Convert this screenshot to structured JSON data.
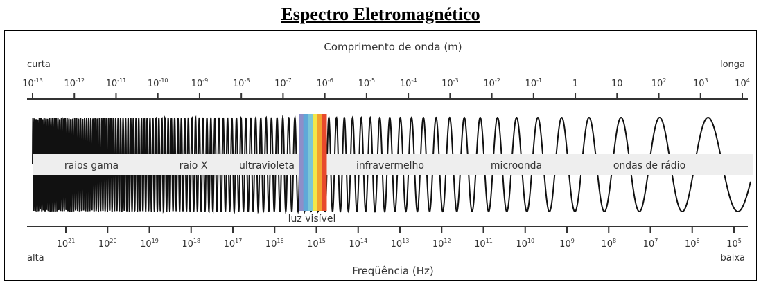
{
  "title": "Espectro Eletromagnético",
  "wavelength": {
    "axis_label": "Comprimento de onda (m)",
    "end_left": "curta",
    "end_right": "longa",
    "ticks": [
      {
        "base": "10",
        "exp": "-13"
      },
      {
        "base": "10",
        "exp": "-12"
      },
      {
        "base": "10",
        "exp": "-11"
      },
      {
        "base": "10",
        "exp": "-10"
      },
      {
        "base": "10",
        "exp": "-9"
      },
      {
        "base": "10",
        "exp": "-8"
      },
      {
        "base": "10",
        "exp": "-7"
      },
      {
        "base": "10",
        "exp": "-6"
      },
      {
        "base": "10",
        "exp": "-5"
      },
      {
        "base": "10",
        "exp": "-4"
      },
      {
        "base": "10",
        "exp": "-3"
      },
      {
        "base": "10",
        "exp": "-2"
      },
      {
        "base": "10",
        "exp": "-1"
      },
      {
        "base": "1",
        "exp": ""
      },
      {
        "base": "10",
        "exp": ""
      },
      {
        "base": "10",
        "exp": "2"
      },
      {
        "base": "10",
        "exp": "3"
      },
      {
        "base": "10",
        "exp": "4"
      }
    ]
  },
  "frequency": {
    "axis_label": "Freqüência (Hz)",
    "end_left": "alta",
    "end_right": "baixa",
    "ticks": [
      {
        "base": "10",
        "exp": "21"
      },
      {
        "base": "10",
        "exp": "20"
      },
      {
        "base": "10",
        "exp": "19"
      },
      {
        "base": "10",
        "exp": "18"
      },
      {
        "base": "10",
        "exp": "17"
      },
      {
        "base": "10",
        "exp": "16"
      },
      {
        "base": "10",
        "exp": "15"
      },
      {
        "base": "10",
        "exp": "14"
      },
      {
        "base": "10",
        "exp": "13"
      },
      {
        "base": "10",
        "exp": "12"
      },
      {
        "base": "10",
        "exp": "11"
      },
      {
        "base": "10",
        "exp": "10"
      },
      {
        "base": "10",
        "exp": "9"
      },
      {
        "base": "10",
        "exp": "8"
      },
      {
        "base": "10",
        "exp": "7"
      },
      {
        "base": "10",
        "exp": "6"
      },
      {
        "base": "10",
        "exp": "5"
      }
    ]
  },
  "bands": [
    {
      "label": "raios gama"
    },
    {
      "label": "raio X"
    },
    {
      "label": "ultravioleta"
    },
    {
      "label": "infravermelho"
    },
    {
      "label": "microonda"
    },
    {
      "label": "ondas de rádio"
    }
  ],
  "visible": {
    "label": "luz visível",
    "colors": [
      "#8e8ec8",
      "#5fa8d8",
      "#7cc7d6",
      "#f2e84a",
      "#f3a12f",
      "#e8492c"
    ]
  },
  "colors": {
    "wave": "#111111",
    "band": "#eeeeee",
    "axis": "#333333"
  }
}
